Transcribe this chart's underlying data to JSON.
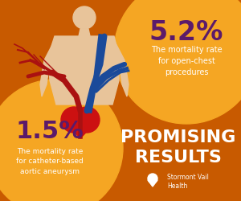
{
  "bg_color": "#C85A00",
  "circle_color": "#F5A623",
  "big_pct_left": "1.5%",
  "big_pct_left_color": "#5B1A6A",
  "desc_left": "The mortality rate\nfor catheter-based\naortic aneurysm",
  "desc_left_color": "#FFFFFF",
  "big_pct_right": "5.2%",
  "big_pct_right_color": "#5B1A6A",
  "desc_right": "The mortality rate\nfor open-chest\nprocedures",
  "desc_right_color": "#FFFFFF",
  "promising": "PROMISING\nRESULTS",
  "pr_color": "#FFFFFF",
  "logo_text": "Stormont Vail\nHealth",
  "logo_color": "#FFFFFF",
  "body_color": "#E8C49A",
  "vein_blue": "#1A4A9A",
  "artery_red": "#AA1111",
  "heart_color": "#CC1111"
}
